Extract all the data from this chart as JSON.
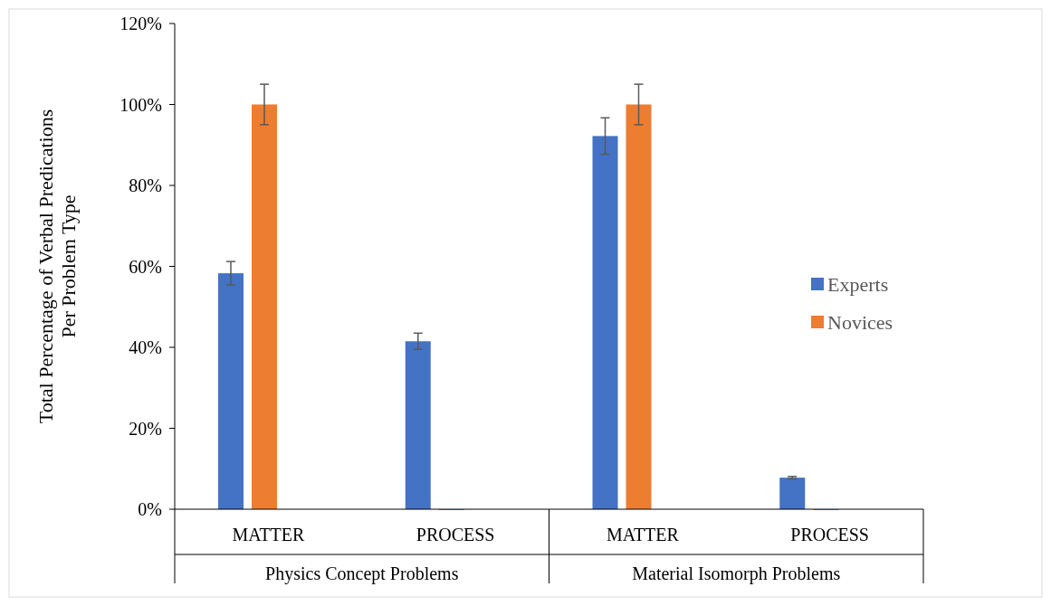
{
  "chart_data": {
    "type": "bar",
    "ylabel": "Total Percentage of  Verbal Predications Per Problem Type",
    "categories": [
      "MATTER",
      "PROCESS",
      "MATTER",
      "PROCESS"
    ],
    "series": [
      {
        "name": "Experts",
        "color": "#4472c4",
        "values": [
          58.3,
          41.5,
          92.2,
          7.8
        ],
        "errors": [
          2.9,
          2,
          4.5,
          0.3
        ]
      },
      {
        "name": "Novices",
        "color": "#ed7d31",
        "values": [
          100,
          0,
          100,
          0
        ],
        "errors": [
          5,
          null,
          5,
          null
        ]
      }
    ],
    "ylim": [
      0,
      120
    ],
    "yticks": [
      {
        "value": 0,
        "label": "0%"
      },
      {
        "value": 20,
        "label": "20%"
      },
      {
        "value": 40,
        "label": "40%"
      },
      {
        "value": 60,
        "label": "60%"
      },
      {
        "value": 80,
        "label": "80%"
      },
      {
        "value": 100,
        "label": "100%"
      },
      {
        "value": 120,
        "label": "120%"
      }
    ],
    "grid": false,
    "legend": "right",
    "annotations": [
      "Physics Concept Problems",
      "Material Isomorph Problems"
    ]
  }
}
